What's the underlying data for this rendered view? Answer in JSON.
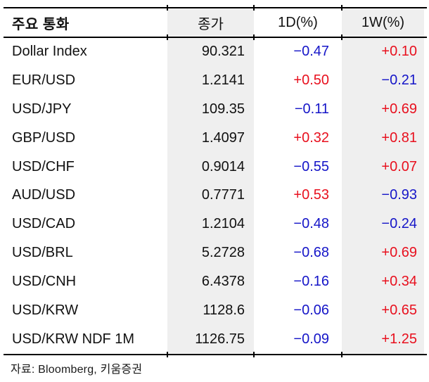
{
  "table": {
    "headers": [
      "주요 통화",
      "종가",
      "1D(%)",
      "1W(%)"
    ],
    "rows": [
      {
        "name": "Dollar Index",
        "close": "90.321",
        "d1": "−0.47",
        "w1": "+0.10"
      },
      {
        "name": "EUR/USD",
        "close": "1.2141",
        "d1": "+0.50",
        "w1": "−0.21"
      },
      {
        "name": "USD/JPY",
        "close": "109.35",
        "d1": "−0.11",
        "w1": "+0.69"
      },
      {
        "name": "GBP/USD",
        "close": "1.4097",
        "d1": "+0.32",
        "w1": "+0.81"
      },
      {
        "name": "USD/CHF",
        "close": "0.9014",
        "d1": "−0.55",
        "w1": "+0.07"
      },
      {
        "name": "AUD/USD",
        "close": "0.7771",
        "d1": "+0.53",
        "w1": "−0.93"
      },
      {
        "name": "USD/CAD",
        "close": "1.2104",
        "d1": "−0.48",
        "w1": "−0.24"
      },
      {
        "name": "USD/BRL",
        "close": "5.2728",
        "d1": "−0.68",
        "w1": "+0.69"
      },
      {
        "name": "USD/CNH",
        "close": "6.4378",
        "d1": "−0.16",
        "w1": "+0.34"
      },
      {
        "name": "USD/KRW",
        "close": "1128.6",
        "d1": "−0.06",
        "w1": "+0.65"
      },
      {
        "name": "USD/KRW NDF 1M",
        "close": "1126.75",
        "d1": "−0.09",
        "w1": "+1.25"
      }
    ]
  },
  "footer": {
    "source": "자료: Bloomberg,  키움증권"
  },
  "colors": {
    "positive_red": "#e8101e",
    "negative_blue": "#1515c8",
    "column_shade": "#efefef",
    "rule_black": "#000000",
    "text": "#111111"
  }
}
